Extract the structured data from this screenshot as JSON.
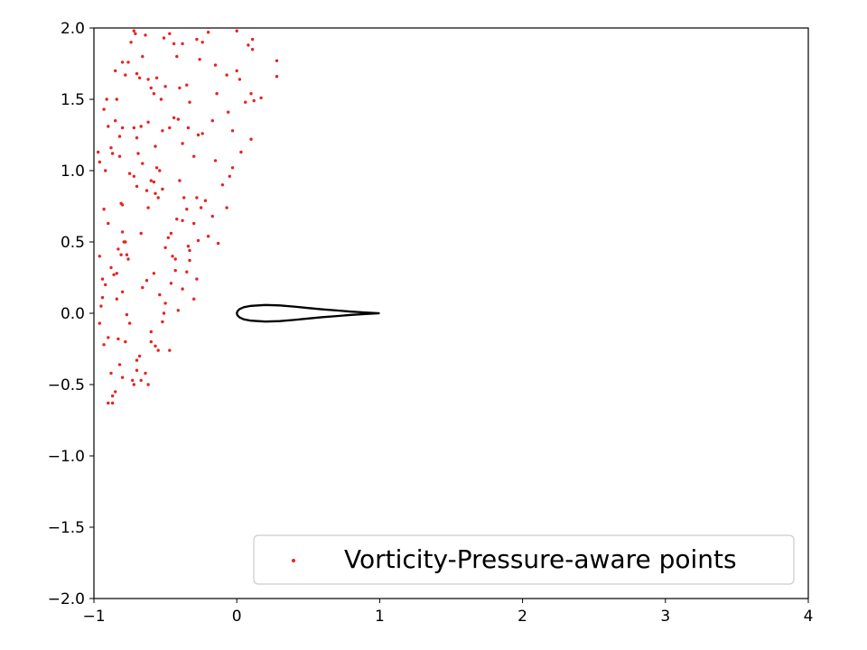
{
  "chart_data": {
    "type": "scatter",
    "title": "",
    "xlabel": "",
    "ylabel": "",
    "xlim": [
      -1,
      4
    ],
    "ylim": [
      -2,
      2
    ],
    "grid": false,
    "x_ticks": [
      -1,
      0,
      1,
      2,
      3,
      4
    ],
    "x_tick_labels": [
      "−1",
      "0",
      "1",
      "2",
      "3",
      "4"
    ],
    "y_ticks": [
      -2.0,
      -1.5,
      -1.0,
      -0.5,
      0.0,
      0.5,
      1.0,
      1.5,
      2.0
    ],
    "y_tick_labels": [
      "−2.0",
      "−1.5",
      "−1.0",
      "−0.5",
      "0.0",
      "0.5",
      "1.0",
      "1.5",
      "2.0"
    ],
    "legend": {
      "placement": "lower-right",
      "entries": [
        "Vorticity-Pressure-aware points"
      ]
    },
    "series": [
      {
        "name": "Vorticity-Pressure-aware points",
        "color": "#e8231f",
        "marker": "dot",
        "points": [
          [
            -0.97,
            1.13
          ],
          [
            -0.96,
            1.06
          ],
          [
            -0.93,
            1.43
          ],
          [
            -0.91,
            1.5
          ],
          [
            -0.88,
            1.16
          ],
          [
            -0.87,
            1.12
          ],
          [
            -0.85,
            1.7
          ],
          [
            -0.84,
            1.5
          ],
          [
            -0.82,
            1.24
          ],
          [
            -0.82,
            1.1
          ],
          [
            -0.8,
            1.76
          ],
          [
            -0.78,
            1.67
          ],
          [
            -0.76,
            1.76
          ],
          [
            -0.74,
            1.9
          ],
          [
            -0.72,
            1.98
          ],
          [
            -0.71,
            1.96
          ],
          [
            -0.7,
            1.68
          ],
          [
            -0.68,
            1.65
          ],
          [
            -0.66,
            1.8
          ],
          [
            -0.64,
            1.95
          ],
          [
            -0.62,
            1.64
          ],
          [
            -0.6,
            1.58
          ],
          [
            -0.58,
            1.54
          ],
          [
            -0.56,
            1.65
          ],
          [
            -0.53,
            1.5
          ],
          [
            -0.51,
            1.93
          ],
          [
            -0.5,
            1.59
          ],
          [
            -0.47,
            1.96
          ],
          [
            -0.44,
            1.89
          ],
          [
            -0.42,
            1.8
          ],
          [
            -0.4,
            1.58
          ],
          [
            -0.38,
            1.89
          ],
          [
            -0.35,
            1.6
          ],
          [
            -0.33,
            1.48
          ],
          [
            -0.28,
            1.92
          ],
          [
            -0.26,
            1.78
          ],
          [
            -0.24,
            1.9
          ],
          [
            -0.2,
            1.97
          ],
          [
            -0.15,
            1.74
          ],
          [
            -0.07,
            1.67
          ],
          [
            0.0,
            1.98
          ],
          [
            0.0,
            1.7
          ],
          [
            0.02,
            1.64
          ],
          [
            0.06,
            1.48
          ],
          [
            0.08,
            1.88
          ],
          [
            0.1,
            1.54
          ],
          [
            0.11,
            1.92
          ],
          [
            0.11,
            1.85
          ],
          [
            0.12,
            1.49
          ],
          [
            0.17,
            1.51
          ],
          [
            0.28,
            1.77
          ],
          [
            0.28,
            1.66
          ],
          [
            -0.9,
            1.31
          ],
          [
            -0.85,
            1.35
          ],
          [
            -0.8,
            1.3
          ],
          [
            -0.72,
            1.3
          ],
          [
            -0.7,
            1.23
          ],
          [
            -0.67,
            1.31
          ],
          [
            -0.62,
            1.34
          ],
          [
            -0.57,
            1.17
          ],
          [
            -0.52,
            1.28
          ],
          [
            -0.47,
            1.3
          ],
          [
            -0.44,
            1.37
          ],
          [
            -0.41,
            1.36
          ],
          [
            -0.38,
            1.19
          ],
          [
            -0.34,
            1.3
          ],
          [
            -0.3,
            1.1
          ],
          [
            -0.27,
            1.25
          ],
          [
            -0.24,
            1.26
          ],
          [
            -0.17,
            1.35
          ],
          [
            -0.14,
            1.54
          ],
          [
            -0.06,
            1.41
          ],
          [
            -0.03,
            1.28
          ],
          [
            0.03,
            1.13
          ],
          [
            0.1,
            1.22
          ],
          [
            -0.96,
            0.4
          ],
          [
            -0.94,
            0.24
          ],
          [
            -0.93,
            0.73
          ],
          [
            -0.9,
            0.63
          ],
          [
            -0.88,
            0.32
          ],
          [
            -0.86,
            0.27
          ],
          [
            -0.84,
            0.28
          ],
          [
            -0.83,
            0.45
          ],
          [
            -0.81,
            0.77
          ],
          [
            -0.8,
            0.76
          ],
          [
            -0.8,
            0.57
          ],
          [
            -0.79,
            0.5
          ],
          [
            -0.78,
            0.5
          ],
          [
            -0.77,
            0.41
          ],
          [
            -0.76,
            0.38
          ],
          [
            -0.75,
            0.98
          ],
          [
            -0.72,
            0.96
          ],
          [
            -0.7,
            0.89
          ],
          [
            -0.69,
            1.12
          ],
          [
            -0.67,
            0.56
          ],
          [
            -0.66,
            1.05
          ],
          [
            -0.63,
            0.86
          ],
          [
            -0.62,
            0.74
          ],
          [
            -0.6,
            0.93
          ],
          [
            -0.58,
            0.92
          ],
          [
            -0.57,
            0.84
          ],
          [
            -0.56,
            1.02
          ],
          [
            -0.55,
            0.81
          ],
          [
            -0.54,
            1.0
          ],
          [
            -0.52,
            0.87
          ],
          [
            -0.5,
            0.46
          ],
          [
            -0.48,
            0.53
          ],
          [
            -0.46,
            0.56
          ],
          [
            -0.45,
            0.4
          ],
          [
            -0.43,
            0.38
          ],
          [
            -0.42,
            0.66
          ],
          [
            -0.4,
            0.93
          ],
          [
            -0.38,
            0.65
          ],
          [
            -0.37,
            0.81
          ],
          [
            -0.35,
            0.73
          ],
          [
            -0.34,
            0.47
          ],
          [
            -0.33,
            0.37
          ],
          [
            -0.3,
            0.63
          ],
          [
            -0.28,
            0.81
          ],
          [
            -0.27,
            0.51
          ],
          [
            -0.25,
            0.74
          ],
          [
            -0.22,
            0.79
          ],
          [
            -0.2,
            0.54
          ],
          [
            -0.17,
            0.68
          ],
          [
            -0.15,
            1.07
          ],
          [
            -0.13,
            0.49
          ],
          [
            -0.1,
            0.9
          ],
          [
            -0.07,
            0.74
          ],
          [
            -0.05,
            0.96
          ],
          [
            -0.03,
            1.02
          ],
          [
            -0.95,
            0.05
          ],
          [
            -0.93,
            -0.22
          ],
          [
            -0.92,
            0.2
          ],
          [
            -0.9,
            -0.17
          ],
          [
            -0.88,
            -0.42
          ],
          [
            -0.87,
            -0.58
          ],
          [
            -0.85,
            -0.55
          ],
          [
            -0.84,
            0.1
          ],
          [
            -0.82,
            -0.36
          ],
          [
            -0.8,
            -0.45
          ],
          [
            -0.8,
            0.15
          ],
          [
            -0.78,
            -0.2
          ],
          [
            -0.77,
            -0.01
          ],
          [
            -0.75,
            -0.07
          ],
          [
            -0.73,
            -0.47
          ],
          [
            -0.72,
            -0.5
          ],
          [
            -0.7,
            -0.33
          ],
          [
            -0.7,
            -0.4
          ],
          [
            -0.68,
            -0.3
          ],
          [
            -0.67,
            -0.47
          ],
          [
            -0.66,
            0.18
          ],
          [
            -0.64,
            -0.42
          ],
          [
            -0.62,
            -0.5
          ],
          [
            -0.6,
            -0.13
          ],
          [
            -0.6,
            -0.2
          ],
          [
            -0.58,
            0.28
          ],
          [
            -0.57,
            -0.23
          ],
          [
            -0.55,
            -0.26
          ],
          [
            -0.54,
            0.13
          ],
          [
            -0.52,
            -0.06
          ],
          [
            -0.51,
            0.0
          ],
          [
            -0.5,
            0.07
          ],
          [
            -0.47,
            -0.26
          ],
          [
            -0.46,
            0.21
          ],
          [
            -0.43,
            0.3
          ],
          [
            -0.41,
            0.02
          ],
          [
            -0.38,
            0.17
          ],
          [
            -0.35,
            0.29
          ],
          [
            -0.33,
            0.44
          ],
          [
            -0.3,
            0.1
          ],
          [
            -0.28,
            0.24
          ],
          [
            -0.96,
            -0.07
          ],
          [
            -0.9,
            -0.63
          ],
          [
            -0.87,
            -0.63
          ],
          [
            -0.83,
            -0.18
          ],
          [
            -0.81,
            0.41
          ],
          [
            -0.63,
            0.23
          ],
          [
            -0.94,
            0.11
          ],
          [
            -0.92,
            1.0
          ]
        ]
      },
      {
        "name": "airfoil",
        "color": "#000000",
        "points": [
          [
            1.0,
            0.0
          ],
          [
            0.9,
            0.0055
          ],
          [
            0.8,
            0.0115
          ],
          [
            0.7,
            0.0195
          ],
          [
            0.6,
            0.0275
          ],
          [
            0.5,
            0.037
          ],
          [
            0.4,
            0.047
          ],
          [
            0.3,
            0.055
          ],
          [
            0.2,
            0.058
          ],
          [
            0.1,
            0.052
          ],
          [
            0.05,
            0.043
          ],
          [
            0.02,
            0.03
          ],
          [
            0.005,
            0.015
          ],
          [
            0.0,
            0.0
          ],
          [
            0.005,
            -0.015
          ],
          [
            0.02,
            -0.03
          ],
          [
            0.05,
            -0.043
          ],
          [
            0.1,
            -0.052
          ],
          [
            0.2,
            -0.058
          ],
          [
            0.3,
            -0.055
          ],
          [
            0.4,
            -0.047
          ],
          [
            0.5,
            -0.037
          ],
          [
            0.6,
            -0.0275
          ],
          [
            0.7,
            -0.0195
          ],
          [
            0.8,
            -0.0115
          ],
          [
            0.9,
            -0.0055
          ],
          [
            1.0,
            0.0
          ]
        ]
      }
    ]
  }
}
